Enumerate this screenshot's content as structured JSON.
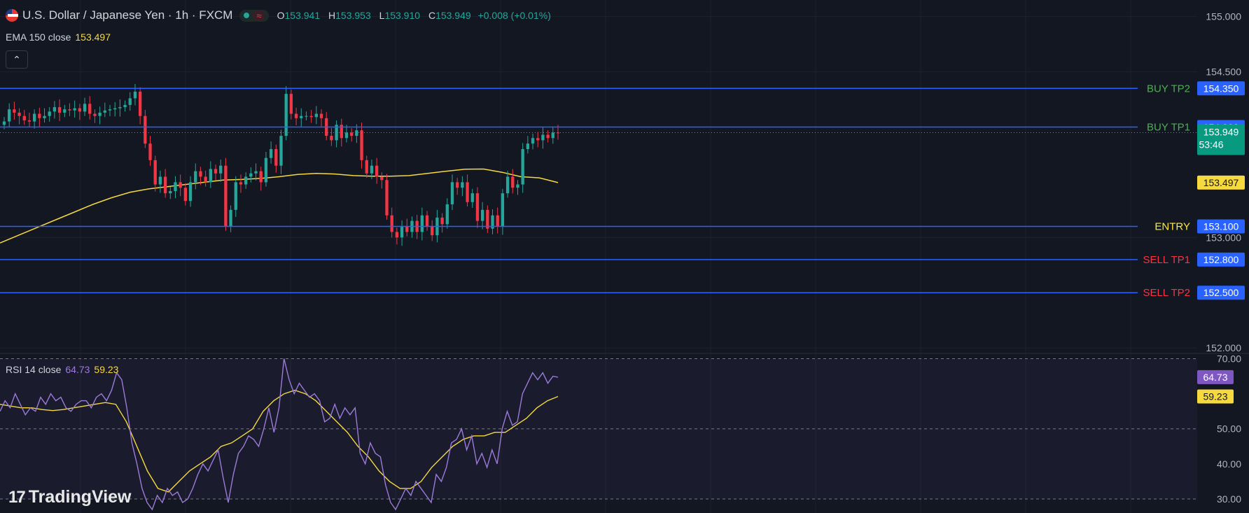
{
  "header": {
    "symbol": "U.S. Dollar / Japanese Yen · 1h · FXCM",
    "pill_symbol": "≈",
    "ohlc": {
      "o_label": "O",
      "o": "153.941",
      "h_label": "H",
      "h": "153.953",
      "l_label": "L",
      "l": "153.910",
      "c_label": "C",
      "c": "153.949",
      "change": "+0.008 (+0.01%)"
    }
  },
  "ema_legend": {
    "label": "EMA 150 close",
    "value": "153.497"
  },
  "rsi_legend": {
    "label": "RSI 14 close",
    "rsi_value": "64.73",
    "ma_value": "59.23"
  },
  "collapse_button": "⌃",
  "logo": {
    "mark": "17",
    "text": "TradingView"
  },
  "colors": {
    "background": "#131722",
    "grid": "#1e222d",
    "up": "#26a69a",
    "down": "#f23645",
    "ema": "#f5d93f",
    "level_line": "#2962ff",
    "rsi": "#9c7bd9",
    "rsi_ma": "#f5d93f"
  },
  "chart_data": [
    {
      "type": "candlestick",
      "ylim": [
        151.95,
        155.15
      ],
      "price_ticks": [
        "155.000",
        "154.500",
        "153.000",
        "152.000"
      ],
      "price_tick_values": [
        155.0,
        154.5,
        153.0,
        152.0
      ],
      "levels": [
        {
          "label": "BUY TP2",
          "value": 154.35,
          "text": "154.350",
          "label_color": "#4caf50"
        },
        {
          "label": "BUY TP1",
          "value": 154.0,
          "text": "154.000",
          "label_color": "#4caf50"
        },
        {
          "label": "ENTRY",
          "value": 153.1,
          "text": "153.100",
          "label_color": "#ffeb3b"
        },
        {
          "label": "SELL TP1",
          "value": 152.8,
          "text": "152.800",
          "label_color": "#f23645"
        },
        {
          "label": "SELL TP2",
          "value": 152.5,
          "text": "152.500",
          "label_color": "#f23645"
        }
      ],
      "last_price": {
        "value": 153.949,
        "text": "153.949",
        "countdown": "53:46"
      },
      "ema_last": {
        "value": 153.497,
        "text": "153.497"
      },
      "closes": [
        154.05,
        154.16,
        154.13,
        154.1,
        154.06,
        154.05,
        154.12,
        154.08,
        154.1,
        154.14,
        154.18,
        154.13,
        154.16,
        154.15,
        154.17,
        154.14,
        154.21,
        154.12,
        154.1,
        154.13,
        154.15,
        154.16,
        154.17,
        154.18,
        154.2,
        154.26,
        154.32,
        154.1,
        153.85,
        153.7,
        153.48,
        153.55,
        153.4,
        153.42,
        153.5,
        153.45,
        153.33,
        153.5,
        153.6,
        153.55,
        153.5,
        153.62,
        153.58,
        153.65,
        153.1,
        153.25,
        153.5,
        153.48,
        153.55,
        153.58,
        153.6,
        153.5,
        153.72,
        153.8,
        153.65,
        153.92,
        154.3,
        154.12,
        154.08,
        154.1,
        154.1,
        154.09,
        154.12,
        154.08,
        153.92,
        153.88,
        154.02,
        153.9,
        153.95,
        153.92,
        153.97,
        153.7,
        153.58,
        153.65,
        153.55,
        153.52,
        153.2,
        153.05,
        153.0,
        153.1,
        153.05,
        153.15,
        153.05,
        153.2,
        153.1,
        153.02,
        153.18,
        153.12,
        153.3,
        153.5,
        153.45,
        153.5,
        153.32,
        153.4,
        153.15,
        153.25,
        153.08,
        153.2,
        153.1,
        153.4,
        153.55,
        153.45,
        153.48,
        153.8,
        153.85,
        153.9,
        153.88,
        153.93,
        153.9,
        153.95,
        153.949
      ],
      "ema": [
        152.95,
        153.02,
        153.09,
        153.16,
        153.23,
        153.3,
        153.36,
        153.41,
        153.44,
        153.46,
        153.48,
        153.5,
        153.52,
        153.525,
        153.535,
        153.55,
        153.57,
        153.58,
        153.575,
        153.56,
        153.555,
        153.555,
        153.56,
        153.58,
        153.6,
        153.618,
        153.62,
        153.59,
        153.55,
        153.54,
        153.497
      ]
    },
    {
      "type": "line",
      "title": "RSI 14 close",
      "ylim": [
        26,
        71.5
      ],
      "ticks": [
        "70.00",
        "50.00",
        "40.00",
        "30.00"
      ],
      "tick_values": [
        70,
        50,
        40,
        30
      ],
      "series": [
        {
          "name": "RSI 14 close",
          "values": [
            55,
            58,
            56,
            60,
            57,
            54,
            56,
            55,
            59,
            57,
            60,
            58,
            59,
            56,
            55,
            57,
            58,
            58,
            56,
            59,
            60,
            58,
            61,
            66,
            64,
            56,
            46,
            40,
            33,
            29,
            27,
            31,
            29,
            33,
            31,
            32,
            29,
            30,
            33,
            37,
            40,
            38,
            41,
            44,
            36,
            29,
            37,
            43,
            45,
            48,
            47,
            45,
            50,
            56,
            49,
            56,
            70,
            64,
            60,
            63,
            61,
            59,
            60,
            58,
            52,
            53,
            57,
            53,
            56,
            54,
            56,
            43,
            40,
            46,
            43,
            42,
            34,
            29,
            27,
            30,
            33,
            31,
            35,
            33,
            31,
            29,
            37,
            35,
            39,
            46,
            47,
            50,
            44,
            48,
            40,
            43,
            39,
            44,
            40,
            50,
            55,
            51,
            52,
            60,
            63,
            66,
            64,
            66,
            63,
            65,
            64.73
          ]
        },
        {
          "name": "RSI-based MA",
          "values": [
            57,
            56.5,
            56,
            56,
            55.5,
            55.2,
            55.5,
            56,
            56.5,
            57,
            57.5,
            57,
            52,
            45,
            38,
            33,
            32,
            35,
            38,
            40,
            42,
            45,
            46,
            48,
            50,
            55,
            58,
            60,
            61,
            60,
            58,
            55,
            52,
            49,
            45,
            42,
            38,
            35,
            33,
            33,
            35,
            39,
            42,
            45,
            47,
            48,
            48,
            49,
            49,
            51,
            53,
            56,
            58,
            59.23
          ]
        }
      ]
    }
  ]
}
